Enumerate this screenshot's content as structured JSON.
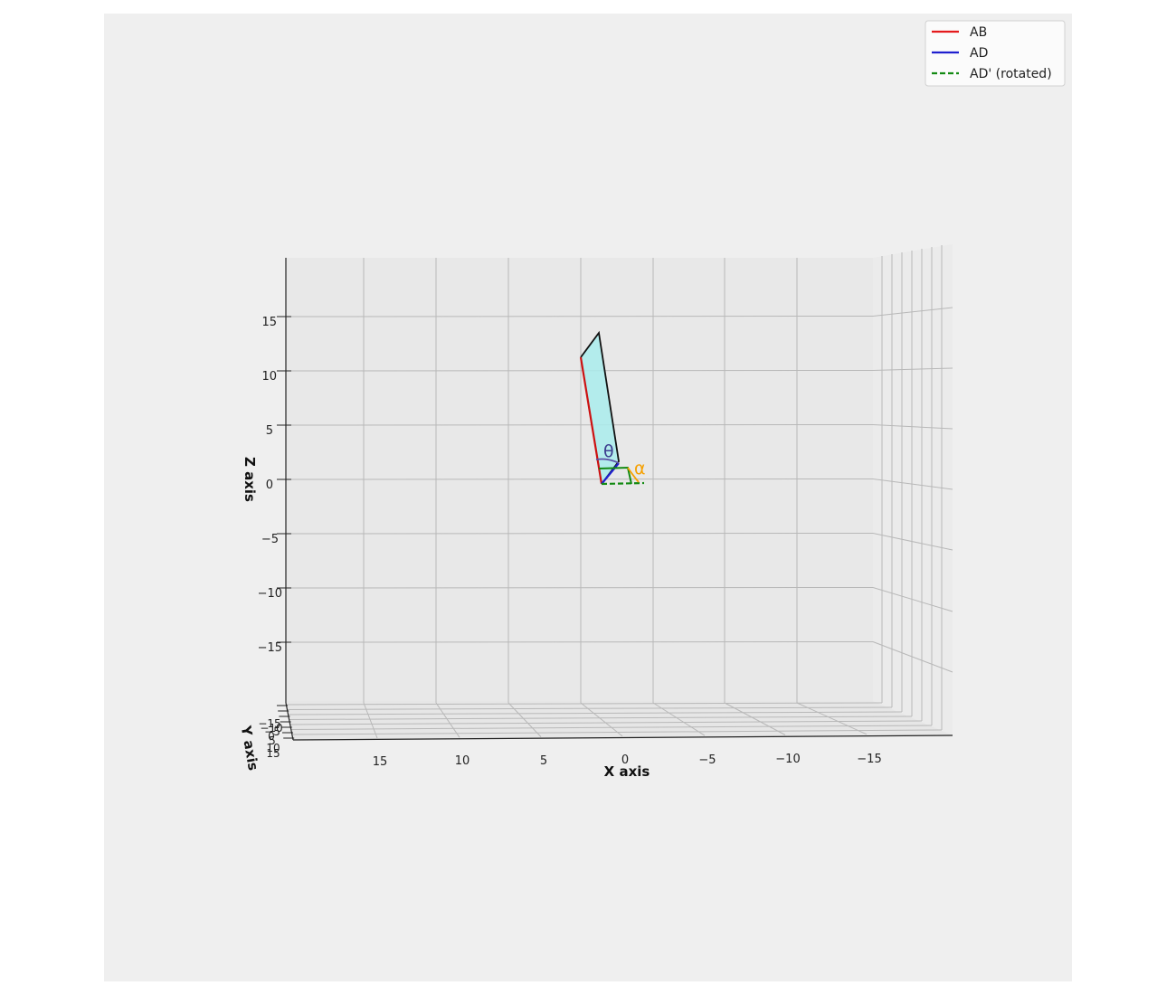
{
  "chart_data": {
    "type": "line",
    "projection": "3d",
    "xlabel": "X axis",
    "ylabel": "Y axis",
    "zlabel": "Z axis",
    "x_ticks": [
      "15",
      "10",
      "5",
      "0",
      "−5",
      "−10",
      "−15"
    ],
    "y_ticks": [
      "−15",
      "−10",
      "−5",
      "0",
      "5",
      "10",
      "15"
    ],
    "z_ticks": [
      "15",
      "10",
      "5",
      "0",
      "−5",
      "−10",
      "−15"
    ],
    "xlim": [
      20,
      -20
    ],
    "zlim": [
      -20,
      20
    ],
    "grid": true,
    "legend_position": "top-right",
    "series": [
      {
        "name": "AB",
        "color": "#e41a1c",
        "style": "solid"
      },
      {
        "name": "AD",
        "color": "#1f1fcf",
        "style": "solid"
      },
      {
        "name": "AD' (rotated)",
        "color": "#138a13",
        "style": "dashed"
      }
    ],
    "surface_color": "#a9ecec",
    "annotations": [
      {
        "text": "θ",
        "color": "#3d3d8f"
      },
      {
        "text": "α",
        "color": "#f5a000"
      }
    ]
  }
}
